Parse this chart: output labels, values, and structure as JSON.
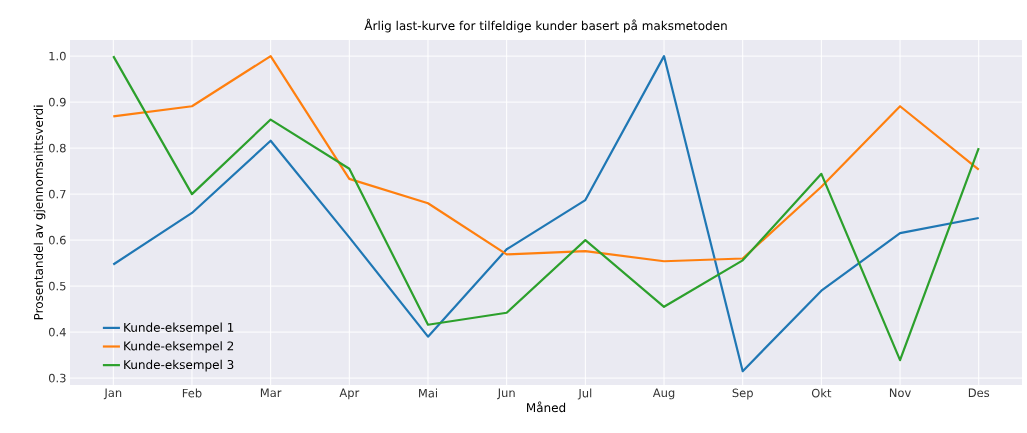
{
  "chart_data": {
    "type": "line",
    "title": "Årlig last-kurve for tilfeldige kunder basert på maksmetoden",
    "xlabel": "Måned",
    "ylabel": "Prosentandel av gjennomsnittsverdi",
    "categories": [
      "Jan",
      "Feb",
      "Mar",
      "Apr",
      "Mai",
      "Jun",
      "Jul",
      "Aug",
      "Sep",
      "Okt",
      "Nov",
      "Des"
    ],
    "series": [
      {
        "name": "Kunde-eksempel 1",
        "color": "#1f77b4",
        "values": [
          0.547,
          0.659,
          0.816,
          0.606,
          0.39,
          0.58,
          0.687,
          1.0,
          0.315,
          0.49,
          0.615,
          0.648
        ]
      },
      {
        "name": "Kunde-eksempel 2",
        "color": "#ff7f0e",
        "values": [
          0.869,
          0.891,
          1.0,
          0.733,
          0.68,
          0.569,
          0.576,
          0.554,
          0.56,
          0.716,
          0.891,
          0.753
        ]
      },
      {
        "name": "Kunde-eksempel 3",
        "color": "#2ca02c",
        "values": [
          1.0,
          0.7,
          0.862,
          0.755,
          0.416,
          0.442,
          0.6,
          0.455,
          0.556,
          0.744,
          0.339,
          0.8
        ]
      }
    ],
    "ylim": [
      0.285,
      1.035
    ],
    "yticks": [
      0.3,
      0.4,
      0.5,
      0.6,
      0.7,
      0.8,
      0.9,
      {
        "value": 1.0,
        "label": "1.0"
      }
    ],
    "grid": true,
    "legend": "bottom left",
    "marker": "none",
    "line_style": "solid"
  }
}
